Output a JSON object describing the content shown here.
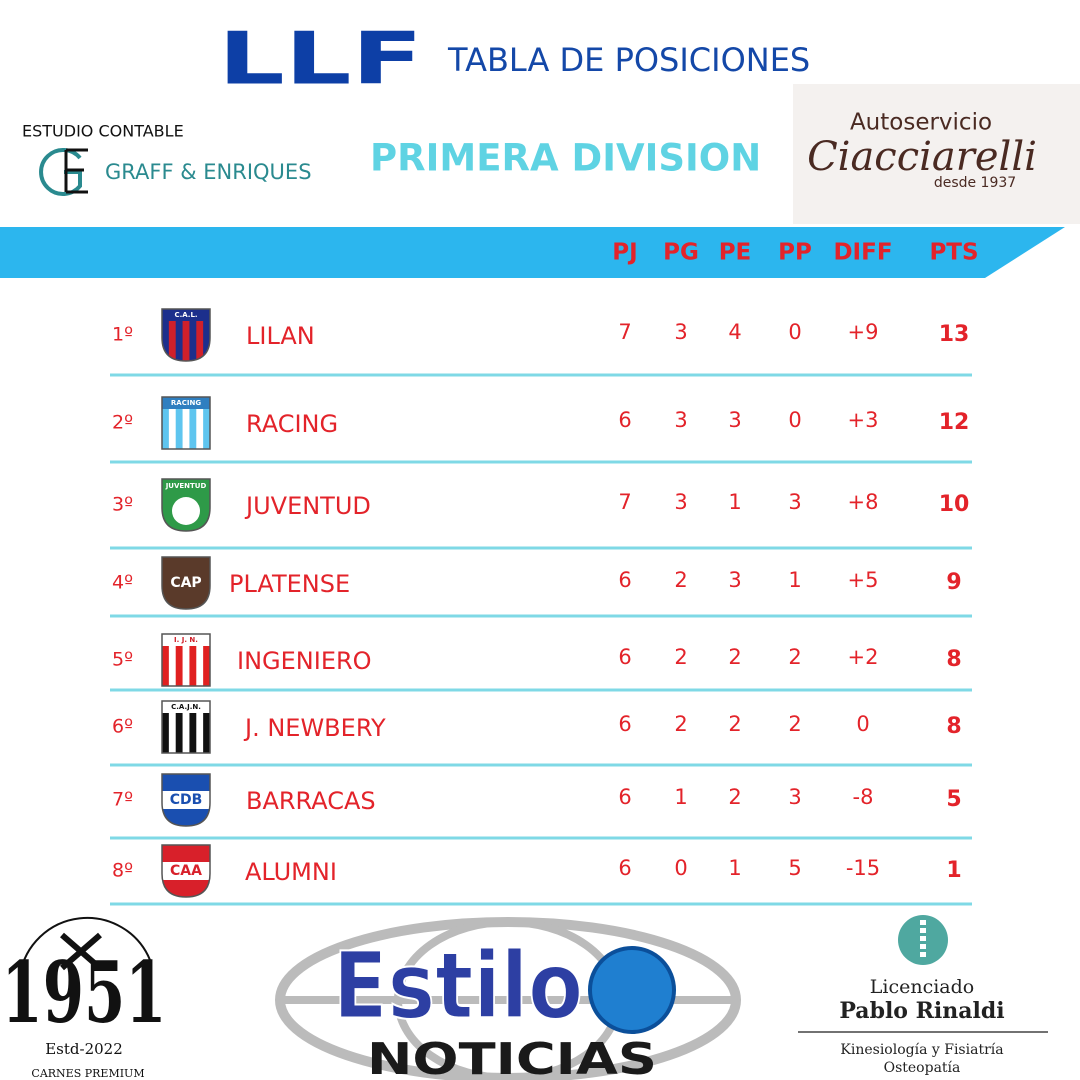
{
  "header": {
    "logo": "LLF",
    "title": "TABLA DE POSICIONES",
    "division": "PRIMERA DIVISION"
  },
  "sponsors": {
    "top_left": {
      "line1": "ESTUDIO CONTABLE",
      "name": "GRAFF & ENRIQUES"
    },
    "top_right": {
      "line1": "Autoservicio",
      "name": "Ciacciarelli",
      "since": "desde 1937"
    },
    "bottom_left": {
      "name": "1951",
      "since": "Estd-2022",
      "line2": "CARNES PREMIUM"
    },
    "bottom_center": {
      "name": "Estilo",
      "line2": "NOTICIAS"
    },
    "bottom_right": {
      "line1": "Licenciado",
      "name": "Pablo Rinaldi",
      "line2": "Kinesiología y Fisiatría",
      "line3": "Osteopatía"
    }
  },
  "table": {
    "columns": [
      "PJ",
      "PG",
      "PE",
      "PP",
      "DIFF",
      "PTS"
    ],
    "rows": [
      {
        "position": "1º",
        "crest": "C.A.L.",
        "team": "LILAN",
        "stats": [
          7,
          3,
          4,
          0,
          "+9",
          13
        ]
      },
      {
        "position": "2º",
        "crest": "RACING",
        "team": "RACING",
        "stats": [
          6,
          3,
          3,
          0,
          "+3",
          12
        ]
      },
      {
        "position": "3º",
        "crest": "JUVENTUD",
        "team": "JUVENTUD",
        "stats": [
          7,
          3,
          1,
          3,
          "+8",
          10
        ]
      },
      {
        "position": "4º",
        "crest": "CAP",
        "team": "PLATENSE",
        "stats": [
          6,
          2,
          3,
          1,
          "+5",
          9
        ]
      },
      {
        "position": "5º",
        "crest": "I. J. N.",
        "team": "INGENIERO",
        "stats": [
          6,
          2,
          2,
          2,
          "+2",
          8
        ]
      },
      {
        "position": "6º",
        "crest": "C.A.J.N.",
        "team": "J. NEWBERY",
        "stats": [
          6,
          2,
          2,
          2,
          0,
          8
        ]
      },
      {
        "position": "7º",
        "crest": "CDB",
        "team": "BARRACAS",
        "stats": [
          6,
          1,
          2,
          3,
          -8,
          5
        ]
      },
      {
        "position": "8º",
        "crest": "CAA",
        "team": "ALUMNI",
        "stats": [
          6,
          0,
          1,
          5,
          -15,
          1
        ]
      }
    ]
  }
}
